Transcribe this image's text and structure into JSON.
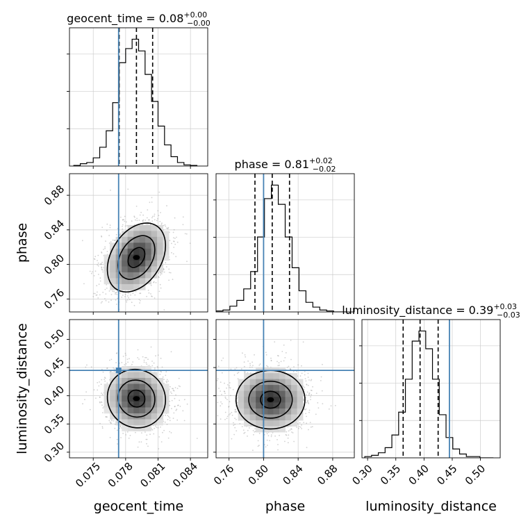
{
  "chart_data": {
    "type": "corner",
    "parameters": [
      {
        "name": "geocent_time",
        "range": [
          0.0728,
          0.0856
        ],
        "ticks": [
          0.075,
          0.078,
          0.081,
          0.084
        ],
        "tick_labels": [
          "0.075",
          "0.078",
          "0.081",
          "0.084"
        ],
        "injection": 0.07735,
        "quantiles": [
          0.0774,
          0.079,
          0.0805
        ]
      },
      {
        "name": "phase",
        "range": [
          0.745,
          0.905
        ],
        "ticks": [
          0.76,
          0.8,
          0.84,
          0.88
        ],
        "tick_labels": [
          "0.76",
          "0.80",
          "0.84",
          "0.88"
        ],
        "injection": 0.8,
        "quantiles": [
          0.79,
          0.81,
          0.83
        ]
      },
      {
        "name": "luminosity_distance",
        "range": [
          0.29,
          0.535
        ],
        "ticks": [
          0.3,
          0.35,
          0.4,
          0.45,
          0.5
        ],
        "tick_labels": [
          "0.30",
          "0.35",
          "0.40",
          "0.45",
          "0.50"
        ],
        "injection": 0.445,
        "quantiles": [
          0.363,
          0.393,
          0.425
        ]
      }
    ],
    "titles": [
      {
        "param": "geocent_time",
        "label": "geocent_time",
        "median": "0.08",
        "plus": "+0.00",
        "minus": "−0.00"
      },
      {
        "param": "phase",
        "label": "phase",
        "median": "0.81",
        "plus": "+0.02",
        "minus": "−0.02"
      },
      {
        "param": "luminosity_distance",
        "label": "luminosity_distance",
        "median": "0.39",
        "plus": "+0.03",
        "minus": "−0.03"
      }
    ],
    "histograms": [
      {
        "param": "geocent_time",
        "bin_edges": [
          0.0732,
          0.0738,
          0.0744,
          0.075,
          0.0756,
          0.0762,
          0.0768,
          0.0774,
          0.078,
          0.0786,
          0.0792,
          0.0798,
          0.0804,
          0.081,
          0.0816,
          0.0822,
          0.0828,
          0.0834,
          0.084,
          0.0846
        ],
        "counts": [
          0.5,
          2,
          3,
          7,
          16,
          30,
          54,
          88,
          100,
          108,
          98,
          78,
          55,
          34,
          18,
          8,
          3,
          1,
          0.5
        ]
      },
      {
        "param": "phase",
        "bin_edges": [
          0.745,
          0.753,
          0.761,
          0.769,
          0.777,
          0.785,
          0.793,
          0.801,
          0.809,
          0.817,
          0.825,
          0.833,
          0.841,
          0.849,
          0.857,
          0.865,
          0.873,
          0.881,
          0.889,
          0.897
        ],
        "counts": [
          1,
          2,
          6,
          12,
          24,
          42,
          78,
          118,
          132,
          112,
          78,
          46,
          22,
          10,
          5,
          2,
          1,
          0,
          0
        ]
      },
      {
        "param": "luminosity_distance",
        "bin_edges": [
          0.295,
          0.307,
          0.319,
          0.331,
          0.343,
          0.355,
          0.367,
          0.379,
          0.391,
          0.403,
          0.415,
          0.427,
          0.439,
          0.451,
          0.463,
          0.475,
          0.487,
          0.499,
          0.511,
          0.523
        ],
        "counts": [
          1,
          2,
          4,
          8,
          18,
          36,
          62,
          92,
          100,
          86,
          62,
          34,
          16,
          7,
          3,
          1,
          1,
          0,
          0
        ]
      }
    ],
    "contours": [
      {
        "x": "geocent_time",
        "y": "phase",
        "center": [
          0.079,
          0.808
        ],
        "sigma": [
          0.00135,
          0.02
        ],
        "rho": 0.35
      },
      {
        "x": "geocent_time",
        "y": "luminosity_distance",
        "center": [
          0.079,
          0.395
        ],
        "sigma": [
          0.00135,
          0.026
        ],
        "rho": -0.05
      },
      {
        "x": "phase",
        "y": "luminosity_distance",
        "center": [
          0.808,
          0.393
        ],
        "sigma": [
          0.02,
          0.026
        ],
        "rho": 0.0
      }
    ],
    "colors": {
      "injection": "#4682b4",
      "hist": "#000000",
      "grid": "#cccccc",
      "scatter": "#9a9a9a"
    }
  }
}
